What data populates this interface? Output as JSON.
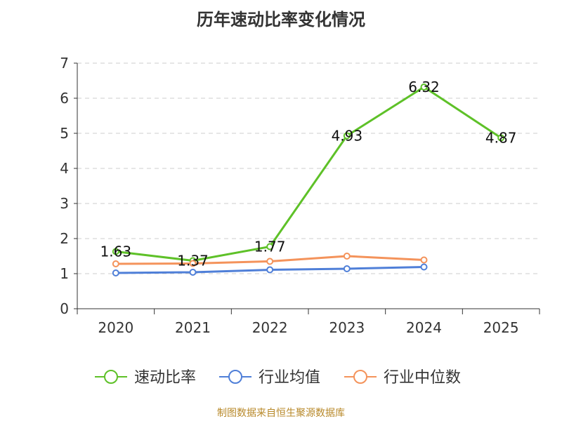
{
  "title": "历年速动比率变化情况",
  "source": "制图数据来自恒生聚源数据库",
  "chart_data": {
    "type": "line",
    "title": "历年速动比率变化情况",
    "categories": [
      "2020",
      "2021",
      "2022",
      "2023",
      "2024",
      "2025"
    ],
    "ylim": [
      0,
      7
    ],
    "yticks": [
      0,
      1,
      2,
      3,
      4,
      5,
      6,
      7
    ],
    "grid": true,
    "legend": "bottom",
    "series": [
      {
        "name": "速动比率",
        "color": "#5ec128",
        "values": [
          1.63,
          1.37,
          1.77,
          4.93,
          6.32,
          4.87
        ],
        "labels": [
          "1.63",
          "1.37",
          "1.77",
          "4.93",
          "6.32",
          "4.87"
        ]
      },
      {
        "name": "行业均值",
        "color": "#4f7fd8",
        "values": [
          1.02,
          1.04,
          1.11,
          1.14,
          1.19,
          null
        ]
      },
      {
        "name": "行业中位数",
        "color": "#f4935b",
        "values": [
          1.28,
          1.29,
          1.35,
          1.5,
          1.39,
          null
        ]
      }
    ]
  }
}
